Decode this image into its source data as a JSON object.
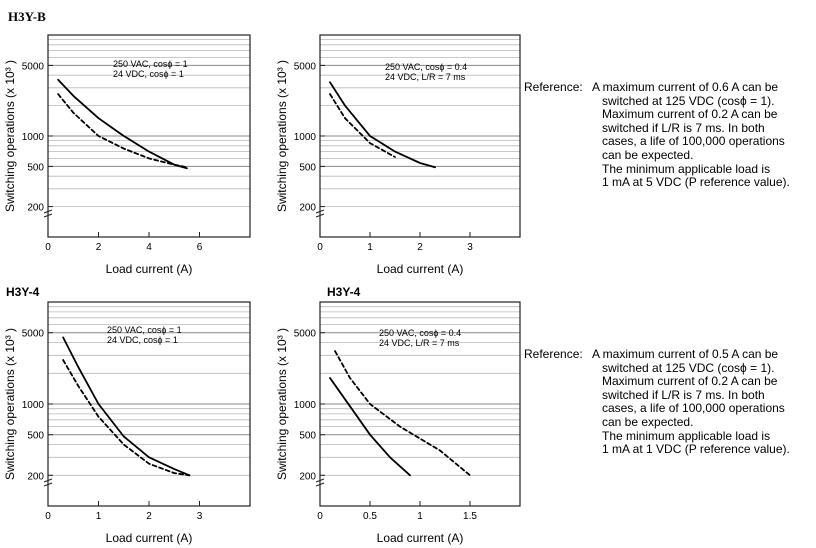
{
  "titles": {
    "top": "H3Y-B",
    "bottom_left": "H3Y-4",
    "bottom_right": "H3Y-4"
  },
  "chart_data": [
    {
      "type": "line",
      "xlabel": "Load current (A)",
      "ylabel": "Switching operations (x 10³ )",
      "xlim": [
        0,
        8
      ],
      "ylim": [
        100,
        10000
      ],
      "y_scale": "log",
      "xticks": [
        0,
        2,
        4,
        6
      ],
      "yticks": [
        200,
        500,
        1000,
        5000
      ],
      "annotation": [
        "250 VAC, cosϕ = 1",
        "24 VDC, cosϕ = 1"
      ],
      "series": [
        {
          "style": "solid",
          "points": [
            [
              0.4,
              3600
            ],
            [
              1.0,
              2500
            ],
            [
              2.0,
              1500
            ],
            [
              3.0,
              1000
            ],
            [
              4.0,
              700
            ],
            [
              5.0,
              520
            ],
            [
              5.5,
              480
            ]
          ]
        },
        {
          "style": "dashed",
          "points": [
            [
              0.4,
              2600
            ],
            [
              1.0,
              1700
            ],
            [
              2.0,
              1000
            ],
            [
              3.0,
              750
            ],
            [
              4.0,
              600
            ],
            [
              5.0,
              520
            ],
            [
              5.5,
              490
            ]
          ]
        }
      ]
    },
    {
      "type": "line",
      "xlabel": "Load current (A)",
      "ylabel": "Switching operations (x 10³ )",
      "xlim": [
        0,
        4
      ],
      "ylim": [
        100,
        10000
      ],
      "y_scale": "log",
      "xticks": [
        0,
        1,
        2,
        3
      ],
      "yticks": [
        200,
        500,
        1000,
        5000
      ],
      "annotation": [
        "250 VAC, cosϕ = 0.4",
        "24 VDC, L/R = 7 ms"
      ],
      "series": [
        {
          "style": "solid",
          "points": [
            [
              0.2,
              3400
            ],
            [
              0.5,
              2000
            ],
            [
              1.0,
              1000
            ],
            [
              1.5,
              700
            ],
            [
              2.0,
              540
            ],
            [
              2.3,
              490
            ]
          ]
        },
        {
          "style": "dashed",
          "points": [
            [
              0.2,
              2600
            ],
            [
              0.5,
              1500
            ],
            [
              1.0,
              850
            ],
            [
              1.5,
              620
            ]
          ]
        }
      ]
    },
    {
      "type": "line",
      "xlabel": "Load current (A)",
      "ylabel": "Switching operations (x 10³ )",
      "xlim": [
        0,
        4
      ],
      "ylim": [
        100,
        10000
      ],
      "y_scale": "log",
      "xticks": [
        0,
        1,
        2,
        3
      ],
      "yticks": [
        200,
        500,
        1000,
        5000
      ],
      "annotation": [
        "250 VAC, cosϕ = 1",
        "24 VDC, cosϕ = 1"
      ],
      "series": [
        {
          "style": "solid",
          "points": [
            [
              0.3,
              4500
            ],
            [
              0.6,
              2300
            ],
            [
              1.0,
              1000
            ],
            [
              1.5,
              480
            ],
            [
              2.0,
              300
            ],
            [
              2.5,
              230
            ],
            [
              2.8,
              200
            ]
          ]
        },
        {
          "style": "dashed",
          "points": [
            [
              0.3,
              2700
            ],
            [
              0.6,
              1500
            ],
            [
              1.0,
              750
            ],
            [
              1.5,
              400
            ],
            [
              2.0,
              260
            ],
            [
              2.5,
              210
            ],
            [
              2.8,
              200
            ]
          ]
        }
      ]
    },
    {
      "type": "line",
      "xlabel": "Load current (A)",
      "ylabel": "Switching operations (x 10³ )",
      "xlim": [
        0,
        2
      ],
      "ylim": [
        100,
        10000
      ],
      "y_scale": "log",
      "xticks": [
        0,
        0.5,
        1,
        1.5
      ],
      "yticks": [
        200,
        500,
        1000,
        5000
      ],
      "annotation": [
        "250 VAC, cosϕ = 0.4",
        "24 VDC, L/R = 7 ms"
      ],
      "series": [
        {
          "style": "solid",
          "points": [
            [
              0.1,
              1800
            ],
            [
              0.3,
              950
            ],
            [
              0.5,
              500
            ],
            [
              0.7,
              300
            ],
            [
              0.9,
              200
            ]
          ]
        },
        {
          "style": "dashed",
          "points": [
            [
              0.15,
              3300
            ],
            [
              0.3,
              1800
            ],
            [
              0.5,
              1000
            ],
            [
              0.8,
              600
            ],
            [
              1.2,
              350
            ],
            [
              1.5,
              200
            ]
          ]
        }
      ]
    }
  ],
  "references": [
    {
      "label": "Reference:",
      "lines": [
        "A maximum current of 0.6 A can be",
        "switched at 125 VDC (cosϕ = 1).",
        "Maximum current of 0.2 A can be",
        "switched if L/R is 7 ms. In both",
        "cases, a life of 100,000 operations",
        "can be expected.",
        "The minimum applicable load is",
        "1 mA at 5 VDC (P reference value)."
      ]
    },
    {
      "label": "Reference:",
      "lines": [
        "A maximum current of 0.5 A can be",
        "switched at 125 VDC (cosϕ = 1).",
        "Maximum current of 0.2 A can be",
        "switched if L/R is 7 ms. In both",
        "cases, a life of 100,000 operations",
        "can be expected.",
        "The minimum applicable load is",
        "1 mA at 1 VDC (P reference value)."
      ]
    }
  ]
}
